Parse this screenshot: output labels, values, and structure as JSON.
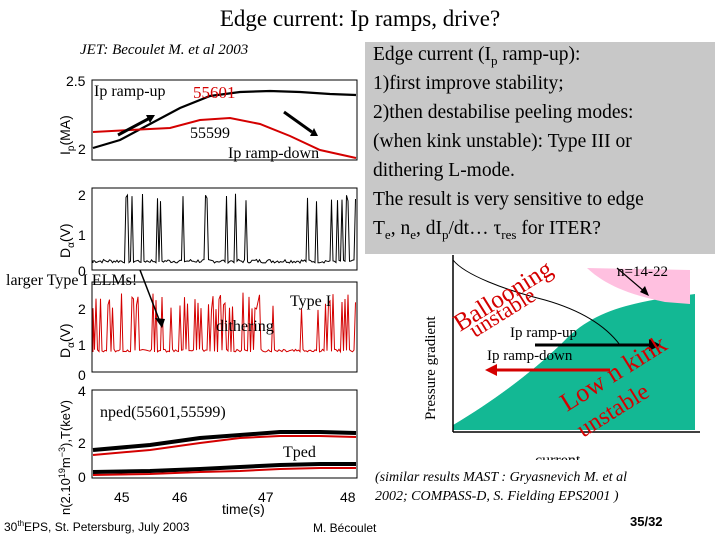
{
  "slide": {
    "title": "Edge current: Ip ramps, drive?",
    "reference": "JET: Becoulet M. et al 2003",
    "footer_left_num": "30",
    "footer_left_sup": "th",
    "footer_left_rest": "EPS, St. Petersburg, July 2003",
    "footer_center": "M. Bécoulet",
    "page_number": "35/32"
  },
  "textbox": {
    "line1": "Edge current (I",
    "line1_sub": "p",
    "line1_end": " ramp-up):",
    "line2": "1)first improve stability;",
    "line3": "2)then destabilise peeling modes:",
    "line4": "(when kink unstable): Type III or",
    "line5": "dithering L-mode.",
    "line6": "The result is very sensitive to edge",
    "line7_a": "T",
    "line7_a_sub": "e",
    "line7_b": ", n",
    "line7_b_sub": "e",
    "line7_c": ", dI",
    "line7_c_sub": "p",
    "line7_d": "/dt… ",
    "line7_tau": "τ",
    "line7_tau_sub": "res",
    "line7_e": " for ITER?"
  },
  "plots": {
    "ip_label": "Ip ramp-up",
    "shot_up": "55601",
    "shot_down": "55599",
    "ip_down_label": "Ip ramp-down",
    "elms_label": "larger Type I ELMs!",
    "type1_label": "Type I",
    "dithering_label": "dithering",
    "nped_label": "nped(55601,55599)",
    "tped_label": "Tped",
    "xlabel": "time(s)",
    "xticks": [
      "45",
      "46",
      "47",
      "48"
    ],
    "ip_yticks": [
      "2.5",
      "2"
    ],
    "da1_yticks": [
      "2",
      "1",
      "0"
    ],
    "da2_yticks": [
      "2",
      "1",
      "0"
    ],
    "tn_yticks": [
      "4",
      "2",
      "0"
    ],
    "ylabel_ip": "I",
    "ylabel_ip_sub": "p",
    "ylabel_ip_unit": "(MA)",
    "ylabel_da": "D",
    "ylabel_da_sub": "α",
    "ylabel_da_unit": "(V)",
    "ylabel_n": "n(2.10",
    "ylabel_n_sup": "19",
    "ylabel_n_mid": "m",
    "ylabel_n_sup2": "−3",
    "ylabel_n_end": "),T(keV)"
  },
  "diagram": {
    "ylabel": "Pressure gradient",
    "xlabel": "current",
    "n_label": "n=14-22",
    "balloon1": "Ballooning",
    "balloon2": "unstable",
    "ramp_up": "Ip ramp-up",
    "ramp_down": "Ip ramp-down",
    "lown": "Low n kink",
    "unstable": "unstable"
  },
  "note": {
    "similar_line1": "(similar results MAST : Gryasnevich M. et al",
    "similar_line2": "2002;  COMPASS-D, S. Fielding EPS2001 )"
  }
}
